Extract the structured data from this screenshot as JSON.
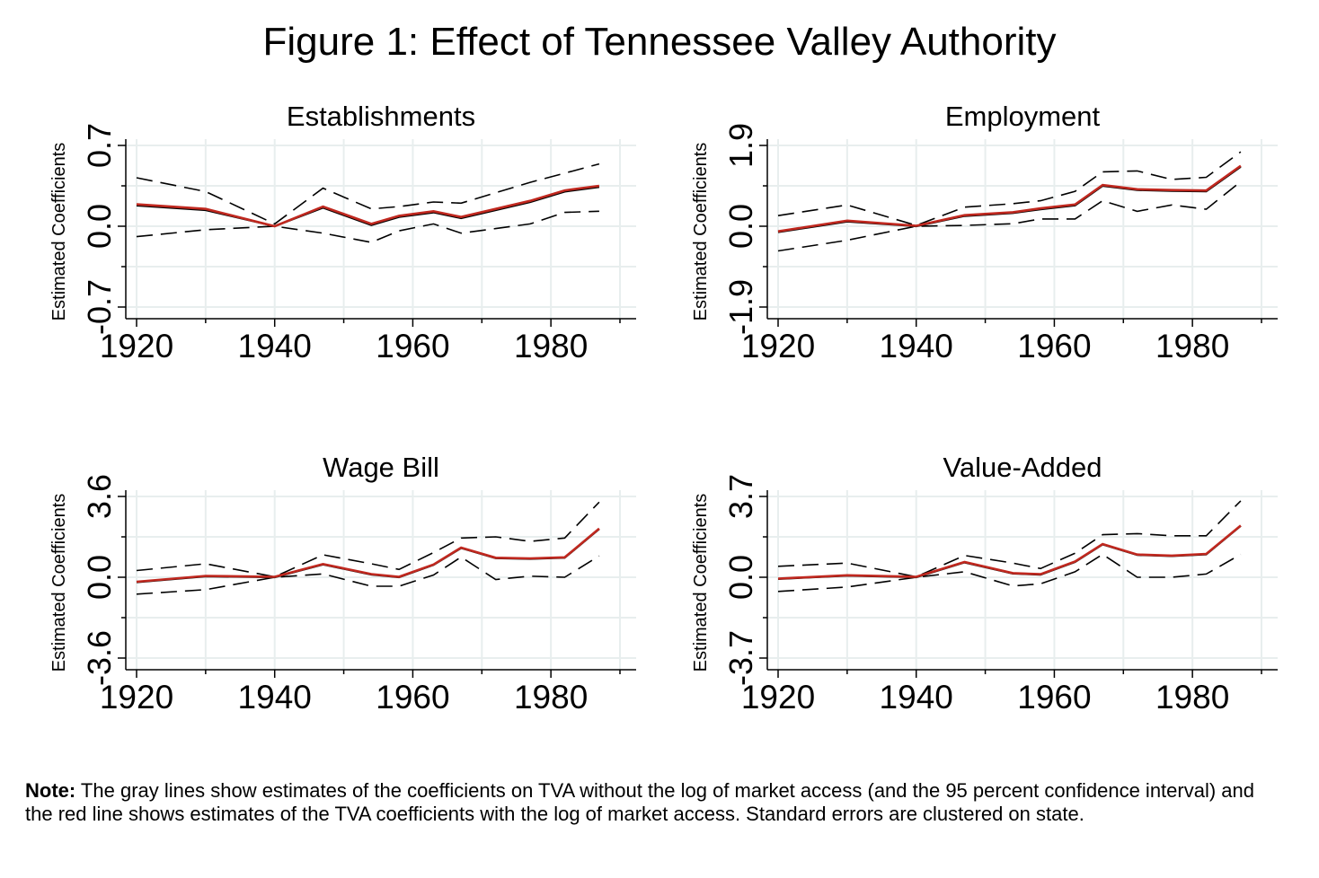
{
  "figure": {
    "title": "Figure 1: Effect of Tennessee Valley Authority",
    "note_label": "Note:",
    "note_text": " The gray lines show estimates of the coefficients on TVA without the log of market access (and the 95 percent confidence interval) and the red line shows estimates of the TVA coefficients with the log of market access. Standard errors are clustered on state."
  },
  "colors": {
    "estimate_line": "#000000",
    "ci_line": "#000000",
    "red_line": "#c0281f",
    "grid": "#e8eeee",
    "axis": "#000000"
  },
  "chart_data": [
    {
      "type": "line",
      "title": "Establishments",
      "ylabel": "Estimated Coefficients",
      "xlim": [
        1920,
        1990
      ],
      "ylim": [
        -0.7,
        0.7
      ],
      "xticks": [
        1920,
        1940,
        1960,
        1980
      ],
      "yticks": [
        -0.7,
        0.0,
        0.7
      ],
      "ytick_labels": [
        "-0.7",
        "0.0",
        "0.7"
      ],
      "grid": true,
      "series": [
        {
          "style": "dashed-upper",
          "x": [
            1920,
            1930,
            1940,
            1947,
            1954,
            1958,
            1963,
            1967,
            1972,
            1977,
            1982,
            1987
          ],
          "y": [
            0.42,
            0.3,
            0.02,
            0.33,
            0.15,
            0.17,
            0.21,
            0.2,
            0.29,
            0.38,
            0.46,
            0.54
          ]
        },
        {
          "style": "dashed-lower",
          "x": [
            1920,
            1930,
            1940,
            1947,
            1954,
            1958,
            1963,
            1967,
            1972,
            1977,
            1982,
            1987
          ],
          "y": [
            -0.09,
            -0.03,
            0.0,
            -0.06,
            -0.14,
            -0.04,
            0.02,
            -0.06,
            -0.02,
            0.02,
            0.12,
            0.13
          ]
        },
        {
          "style": "estimate",
          "x": [
            1920,
            1930,
            1940,
            1947,
            1954,
            1958,
            1963,
            1967,
            1972,
            1977,
            1982,
            1987
          ],
          "y": [
            0.18,
            0.14,
            0.0,
            0.16,
            0.01,
            0.08,
            0.12,
            0.07,
            0.14,
            0.21,
            0.3,
            0.34
          ]
        },
        {
          "style": "red",
          "x": [
            1920,
            1930,
            1940,
            1947,
            1954,
            1958,
            1963,
            1967,
            1972,
            1977,
            1982,
            1987
          ],
          "y": [
            0.19,
            0.15,
            0.0,
            0.17,
            0.02,
            0.09,
            0.13,
            0.08,
            0.15,
            0.22,
            0.31,
            0.35
          ]
        }
      ]
    },
    {
      "type": "line",
      "title": "Employment",
      "ylabel": "Estimated Coefficients",
      "xlim": [
        1920,
        1990
      ],
      "ylim": [
        -1.9,
        1.9
      ],
      "xticks": [
        1920,
        1940,
        1960,
        1980
      ],
      "yticks": [
        -1.9,
        0.0,
        1.9
      ],
      "ytick_labels": [
        "-1.9",
        "0.0",
        "1.9"
      ],
      "grid": true,
      "series": [
        {
          "style": "dashed-upper",
          "x": [
            1920,
            1930,
            1940,
            1947,
            1954,
            1958,
            1963,
            1967,
            1972,
            1977,
            1982,
            1987
          ],
          "y": [
            0.25,
            0.5,
            0.02,
            0.45,
            0.53,
            0.6,
            0.82,
            1.28,
            1.3,
            1.1,
            1.15,
            1.75
          ]
        },
        {
          "style": "dashed-lower",
          "x": [
            1920,
            1930,
            1940,
            1947,
            1954,
            1958,
            1963,
            1967,
            1972,
            1977,
            1982,
            1987
          ],
          "y": [
            -0.58,
            -0.33,
            0.0,
            0.02,
            0.06,
            0.17,
            0.17,
            0.6,
            0.35,
            0.5,
            0.4,
            1.05
          ]
        },
        {
          "style": "estimate",
          "x": [
            1920,
            1930,
            1940,
            1947,
            1954,
            1958,
            1963,
            1967,
            1972,
            1977,
            1982,
            1987
          ],
          "y": [
            -0.14,
            0.11,
            0.0,
            0.24,
            0.31,
            0.4,
            0.49,
            0.95,
            0.85,
            0.83,
            0.82,
            1.4
          ]
        },
        {
          "style": "red",
          "x": [
            1920,
            1930,
            1940,
            1947,
            1954,
            1958,
            1963,
            1967,
            1972,
            1977,
            1982,
            1987
          ],
          "y": [
            -0.12,
            0.13,
            0.01,
            0.26,
            0.33,
            0.42,
            0.51,
            0.97,
            0.87,
            0.85,
            0.84,
            1.42
          ]
        }
      ]
    },
    {
      "type": "line",
      "title": "Wage Bill",
      "ylabel": "Estimated Coefficients",
      "xlim": [
        1920,
        1990
      ],
      "ylim": [
        -3.6,
        3.6
      ],
      "xticks": [
        1920,
        1940,
        1960,
        1980
      ],
      "yticks": [
        -3.6,
        0.0,
        3.6
      ],
      "ytick_labels": [
        "-3.6",
        "0.0",
        "3.6"
      ],
      "grid": true,
      "series": [
        {
          "style": "dashed-upper",
          "x": [
            1920,
            1930,
            1940,
            1947,
            1954,
            1958,
            1963,
            1967,
            1972,
            1977,
            1982,
            1987
          ],
          "y": [
            0.3,
            0.6,
            0.02,
            1.0,
            0.6,
            0.35,
            1.1,
            1.75,
            1.8,
            1.6,
            1.75,
            3.35
          ]
        },
        {
          "style": "dashed-lower",
          "x": [
            1920,
            1930,
            1940,
            1947,
            1954,
            1958,
            1963,
            1967,
            1972,
            1977,
            1982,
            1987
          ],
          "y": [
            -0.75,
            -0.55,
            0.0,
            0.15,
            -0.4,
            -0.4,
            0.1,
            0.9,
            -0.1,
            0.05,
            0.0,
            0.95
          ]
        },
        {
          "style": "estimate",
          "x": [
            1920,
            1930,
            1940,
            1947,
            1954,
            1958,
            1963,
            1967,
            1972,
            1977,
            1982,
            1987
          ],
          "y": [
            -0.22,
            0.04,
            0.0,
            0.57,
            0.12,
            0.0,
            0.55,
            1.3,
            0.85,
            0.82,
            0.87,
            2.15
          ]
        },
        {
          "style": "red",
          "x": [
            1920,
            1930,
            1940,
            1947,
            1954,
            1958,
            1963,
            1967,
            1972,
            1977,
            1982,
            1987
          ],
          "y": [
            -0.2,
            0.06,
            0.02,
            0.59,
            0.14,
            0.02,
            0.57,
            1.32,
            0.87,
            0.84,
            0.89,
            2.17
          ]
        }
      ]
    },
    {
      "type": "line",
      "title": "Value-Added",
      "ylabel": "Estimated Coefficients",
      "xlim": [
        1920,
        1990
      ],
      "ylim": [
        -3.7,
        3.7
      ],
      "xticks": [
        1920,
        1940,
        1960,
        1980
      ],
      "yticks": [
        -3.7,
        0.0,
        3.7
      ],
      "ytick_labels": [
        "-3.7",
        "0.0",
        "3.7"
      ],
      "grid": true,
      "series": [
        {
          "style": "dashed-upper",
          "x": [
            1920,
            1930,
            1940,
            1947,
            1954,
            1958,
            1963,
            1967,
            1972,
            1977,
            1982,
            1987
          ],
          "y": [
            0.5,
            0.65,
            0.02,
            1.0,
            0.65,
            0.4,
            1.1,
            1.95,
            2.0,
            1.9,
            1.9,
            3.5
          ]
        },
        {
          "style": "dashed-lower",
          "x": [
            1920,
            1930,
            1940,
            1947,
            1954,
            1958,
            1963,
            1967,
            1972,
            1977,
            1982,
            1987
          ],
          "y": [
            -0.65,
            -0.45,
            0.0,
            0.25,
            -0.4,
            -0.3,
            0.25,
            1.05,
            0.0,
            0.0,
            0.15,
            1.05
          ]
        },
        {
          "style": "estimate",
          "x": [
            1920,
            1930,
            1940,
            1947,
            1954,
            1958,
            1963,
            1967,
            1972,
            1977,
            1982,
            1987
          ],
          "y": [
            -0.08,
            0.07,
            0.0,
            0.68,
            0.17,
            0.12,
            0.7,
            1.5,
            1.02,
            0.97,
            1.05,
            2.35
          ]
        },
        {
          "style": "red",
          "x": [
            1920,
            1930,
            1940,
            1947,
            1954,
            1958,
            1963,
            1967,
            1972,
            1977,
            1982,
            1987
          ],
          "y": [
            -0.06,
            0.09,
            0.02,
            0.7,
            0.19,
            0.14,
            0.72,
            1.52,
            1.04,
            0.99,
            1.07,
            2.37
          ]
        }
      ]
    }
  ]
}
